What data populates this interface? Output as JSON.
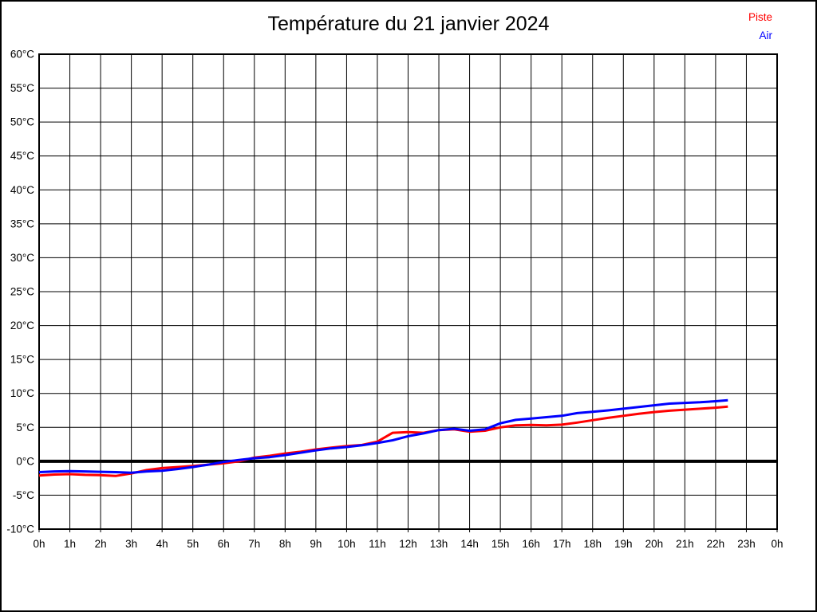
{
  "title": "Température du 21 janvier 2024",
  "legend": [
    {
      "label": "Piste",
      "color": "#ff0000"
    },
    {
      "label": "Air",
      "color": "#0000ff"
    }
  ],
  "chart_data": {
    "type": "line",
    "title": "Température du 21 janvier 2024",
    "xlabel": "",
    "ylabel": "",
    "xlim": [
      0,
      24
    ],
    "ylim": [
      -10,
      60
    ],
    "y_step": 5,
    "grid": true,
    "zero_line_bold": true,
    "legend_position": "top-right",
    "x_tick_labels": [
      "0h",
      "1h",
      "2h",
      "3h",
      "4h",
      "5h",
      "6h",
      "7h",
      "8h",
      "9h",
      "10h",
      "11h",
      "12h",
      "13h",
      "14h",
      "15h",
      "16h",
      "17h",
      "18h",
      "19h",
      "20h",
      "21h",
      "22h",
      "23h",
      "0h"
    ],
    "y_tick_labels": [
      "60°C",
      "55°C",
      "50°C",
      "45°C",
      "40°C",
      "35°C",
      "30°C",
      "25°C",
      "20°C",
      "15°C",
      "10°C",
      "5°C",
      "0°C",
      "-5°C",
      "-10°C"
    ],
    "x_unit": "h",
    "y_unit": "°C",
    "x": [
      0,
      0.5,
      1,
      1.5,
      2,
      2.5,
      3,
      3.5,
      4,
      4.5,
      5,
      5.5,
      6,
      6.5,
      7,
      7.5,
      8,
      8.5,
      9,
      9.5,
      10,
      10.5,
      11,
      11.5,
      12,
      12.5,
      13,
      13.5,
      14,
      14.5,
      15,
      15.5,
      16,
      16.5,
      17,
      17.5,
      18,
      18.5,
      19,
      19.5,
      20,
      20.5,
      21,
      21.5,
      22,
      22.4
    ],
    "series": [
      {
        "name": "Piste",
        "color": "#ff0000",
        "values": [
          -2.1,
          -1.95,
          -1.9,
          -2.0,
          -2.05,
          -2.15,
          -1.8,
          -1.3,
          -1.0,
          -0.85,
          -0.7,
          -0.5,
          -0.3,
          0.0,
          0.55,
          0.8,
          1.15,
          1.4,
          1.75,
          2.0,
          2.25,
          2.4,
          2.9,
          4.2,
          4.3,
          4.2,
          4.6,
          4.7,
          4.35,
          4.5,
          5.0,
          5.3,
          5.35,
          5.3,
          5.4,
          5.7,
          6.05,
          6.4,
          6.7,
          7.0,
          7.25,
          7.45,
          7.6,
          7.75,
          7.9,
          8.05
        ]
      },
      {
        "name": "Air",
        "color": "#0000ff",
        "values": [
          -1.6,
          -1.5,
          -1.45,
          -1.5,
          -1.55,
          -1.6,
          -1.7,
          -1.5,
          -1.4,
          -1.15,
          -0.85,
          -0.5,
          -0.1,
          0.2,
          0.45,
          0.6,
          0.9,
          1.25,
          1.6,
          1.9,
          2.1,
          2.35,
          2.7,
          3.1,
          3.7,
          4.1,
          4.6,
          4.8,
          4.5,
          4.7,
          5.6,
          6.1,
          6.3,
          6.5,
          6.7,
          7.1,
          7.3,
          7.5,
          7.75,
          8.0,
          8.25,
          8.5,
          8.6,
          8.7,
          8.85,
          9.0
        ]
      }
    ]
  }
}
